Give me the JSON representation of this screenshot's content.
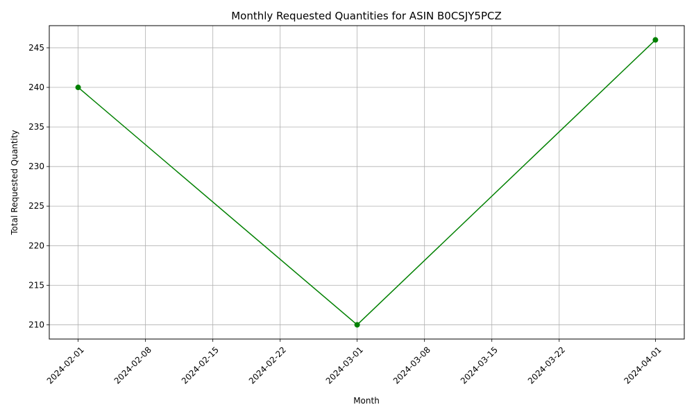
{
  "chart_data": {
    "type": "line",
    "title": "Monthly Requested Quantities for ASIN B0CSJY5PCZ",
    "xlabel": "Month",
    "ylabel": "Total Requested Quantity",
    "x": [
      "2024-02-01",
      "2024-03-01",
      "2024-04-01"
    ],
    "series": [
      {
        "values": [
          240,
          210,
          246
        ],
        "color": "#008000",
        "marker": "circle"
      }
    ],
    "xlim": [
      "2024-01-29",
      "2024-04-04"
    ],
    "ylim": [
      208.2,
      247.8
    ],
    "x_ticks": [
      "2024-02-01",
      "2024-02-08",
      "2024-02-15",
      "2024-02-22",
      "2024-03-01",
      "2024-03-08",
      "2024-03-15",
      "2024-03-22",
      "2024-04-01"
    ],
    "y_ticks": [
      210,
      215,
      220,
      225,
      230,
      235,
      240,
      245
    ],
    "grid": true,
    "legend": false
  }
}
